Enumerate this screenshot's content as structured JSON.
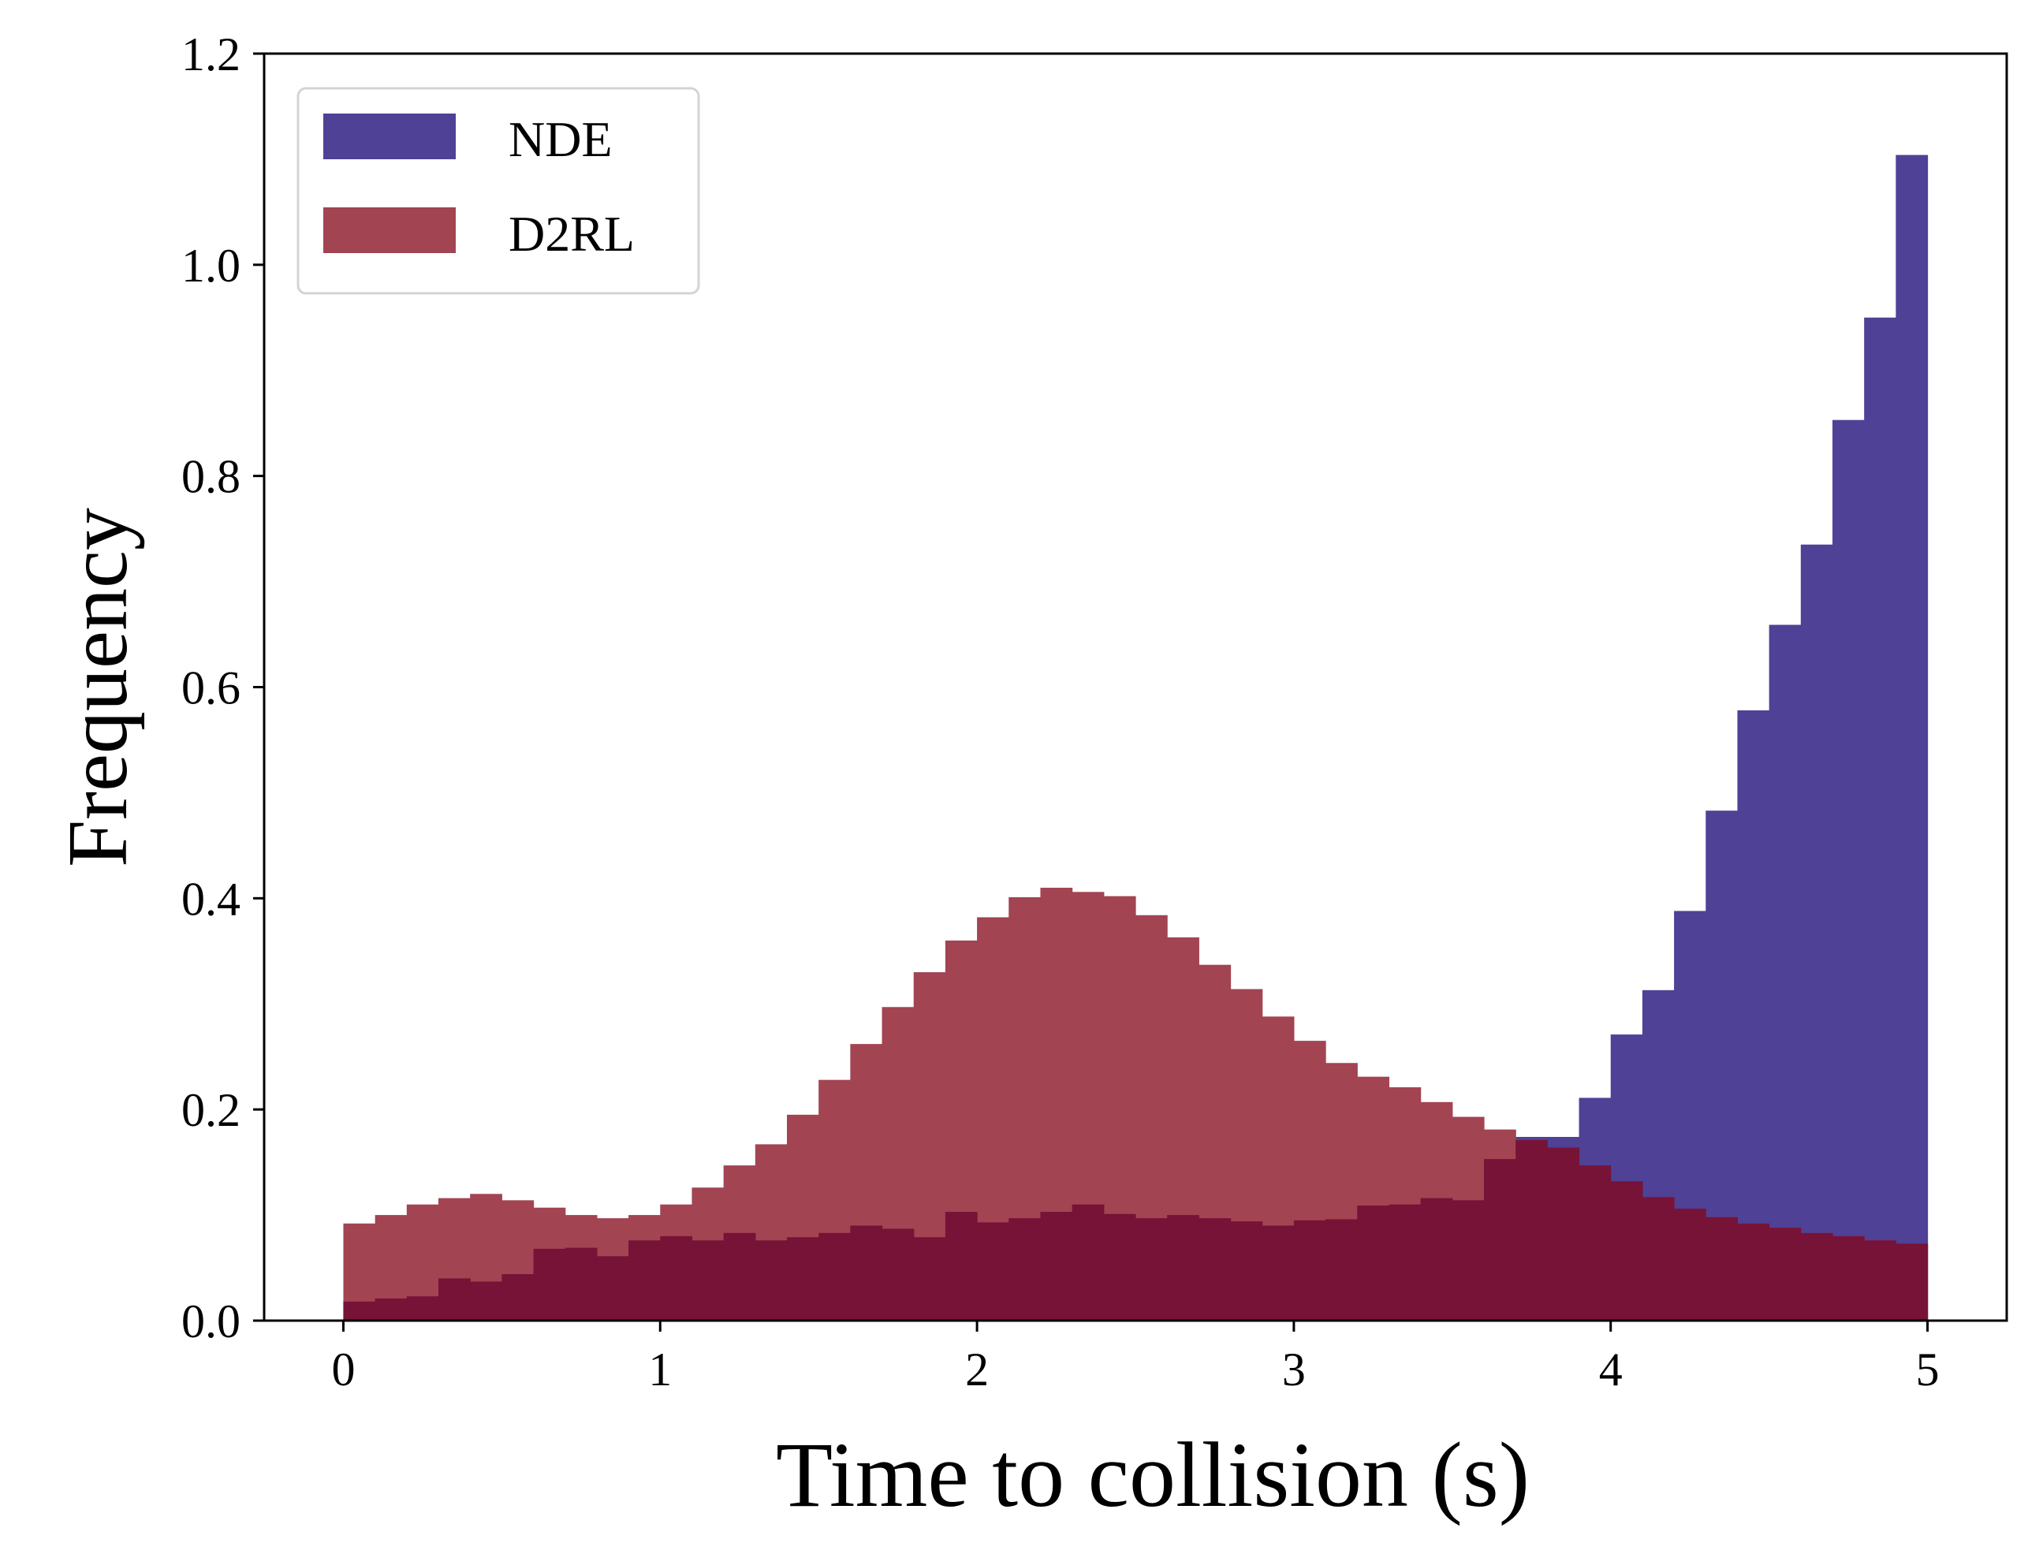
{
  "chart_data": {
    "type": "histogram",
    "xlabel": "Time to collision (s)",
    "ylabel": "Frequency",
    "xlim": [
      -0.25,
      5.25
    ],
    "ylim": [
      0,
      1.2
    ],
    "xticks": [
      0,
      1,
      2,
      3,
      4,
      5
    ],
    "yticks": [
      0.0,
      0.2,
      0.4,
      0.6,
      0.8,
      1.0,
      1.2
    ],
    "ytick_labels": [
      "0.0",
      "0.2",
      "0.4",
      "0.6",
      "0.8",
      "1.0",
      "1.2"
    ],
    "bin_width": 0.1,
    "bin_starts": [
      0.0,
      0.1,
      0.2,
      0.3,
      0.4,
      0.5,
      0.6,
      0.7,
      0.8,
      0.9,
      1.0,
      1.1,
      1.2,
      1.3,
      1.4,
      1.5,
      1.6,
      1.7,
      1.8,
      1.9,
      2.0,
      2.1,
      2.2,
      2.3,
      2.4,
      2.5,
      2.6,
      2.7,
      2.8,
      2.9,
      3.0,
      3.1,
      3.2,
      3.3,
      3.4,
      3.5,
      3.6,
      3.7,
      3.8,
      3.9,
      4.0,
      4.1,
      4.2,
      4.3,
      4.4,
      4.5,
      4.6,
      4.7,
      4.8,
      4.9
    ],
    "grid": false,
    "legend_position": "top-left",
    "series": [
      {
        "name": "NDE",
        "color": "#4f4196",
        "values": [
          0.018,
          0.021,
          0.023,
          0.04,
          0.037,
          0.044,
          0.068,
          0.069,
          0.061,
          0.076,
          0.08,
          0.076,
          0.083,
          0.076,
          0.079,
          0.083,
          0.09,
          0.087,
          0.079,
          0.103,
          0.093,
          0.097,
          0.103,
          0.11,
          0.101,
          0.097,
          0.1,
          0.097,
          0.094,
          0.09,
          0.095,
          0.096,
          0.109,
          0.11,
          0.116,
          0.114,
          0.153,
          0.174,
          0.174,
          0.211,
          0.271,
          0.313,
          0.388,
          0.483,
          0.578,
          0.659,
          0.735,
          0.853,
          0.95,
          1.104
        ]
      },
      {
        "name": "D2RL",
        "color": "#a24452",
        "values": [
          0.092,
          0.1,
          0.11,
          0.116,
          0.12,
          0.114,
          0.107,
          0.1,
          0.097,
          0.1,
          0.11,
          0.126,
          0.147,
          0.167,
          0.195,
          0.228,
          0.262,
          0.297,
          0.33,
          0.36,
          0.382,
          0.401,
          0.41,
          0.406,
          0.402,
          0.384,
          0.363,
          0.337,
          0.314,
          0.288,
          0.265,
          0.244,
          0.231,
          0.221,
          0.207,
          0.193,
          0.181,
          0.171,
          0.164,
          0.147,
          0.132,
          0.117,
          0.106,
          0.098,
          0.092,
          0.088,
          0.083,
          0.08,
          0.076,
          0.073
        ]
      }
    ],
    "overlap_color": "#761337"
  }
}
